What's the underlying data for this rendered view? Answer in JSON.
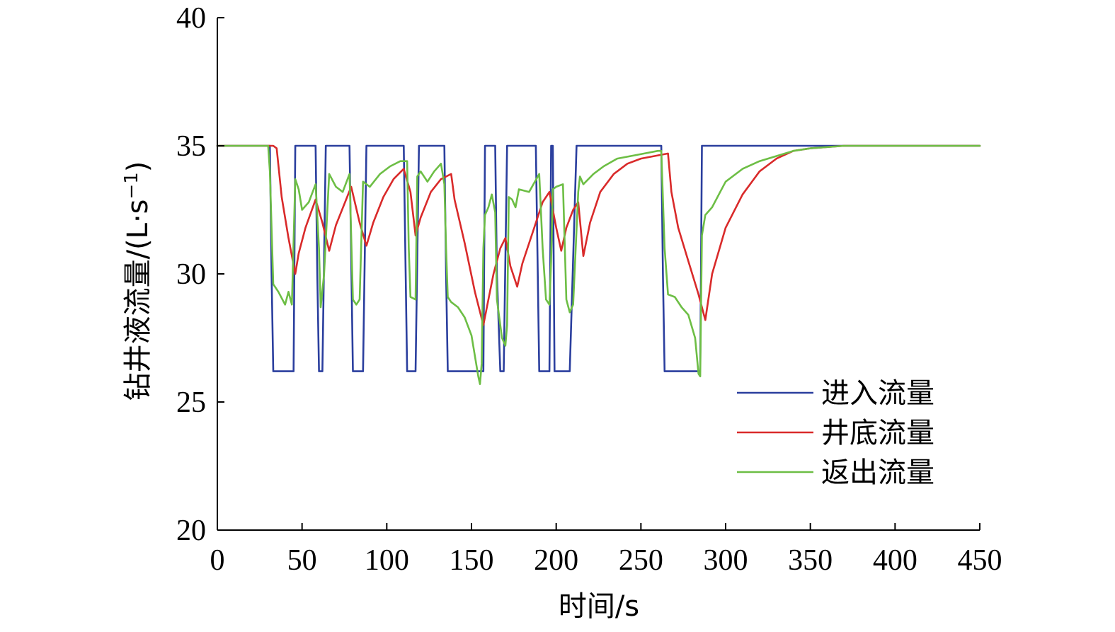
{
  "chart_data": {
    "type": "line",
    "title": "",
    "xlabel": "时间/s",
    "ylabel": "钻井液流量/(L·s",
    "ylabel_sup": "−1",
    "ylabel_end": ")",
    "xlim": [
      0,
      450
    ],
    "ylim": [
      20,
      40
    ],
    "xticks": [
      0,
      50,
      100,
      150,
      200,
      250,
      300,
      350,
      400,
      450
    ],
    "yticks": [
      20,
      25,
      30,
      35,
      40
    ],
    "grid": false,
    "legend_position": "bottom-right",
    "series": [
      {
        "name": "进入流量",
        "color": "#2B3F9E",
        "x": [
          0,
          31,
          32,
          33,
          45,
          46,
          58,
          59,
          60,
          62,
          64,
          78,
          80,
          82,
          86,
          88,
          110,
          112,
          114,
          117,
          119,
          134,
          135,
          136,
          155,
          157,
          158,
          164,
          165,
          167,
          169,
          171,
          173,
          175,
          188,
          190,
          192,
          196,
          197,
          198,
          199,
          204,
          206,
          208,
          212,
          214,
          262,
          263,
          264,
          284,
          285,
          286,
          450
        ],
        "y": [
          35,
          35,
          30,
          26.2,
          26.2,
          35,
          35,
          30,
          26.2,
          26.2,
          35,
          35,
          26.2,
          26.2,
          26.2,
          35,
          35,
          26.2,
          26.2,
          26.2,
          35,
          35,
          30,
          26.2,
          26.2,
          26.2,
          35,
          35,
          30,
          26.2,
          26.2,
          35,
          35,
          35,
          35,
          26.2,
          26.2,
          26.2,
          35,
          35,
          26.2,
          26.2,
          26.2,
          26.2,
          35,
          35,
          35,
          30,
          26.2,
          26.2,
          26.2,
          35,
          35
        ]
      },
      {
        "name": "井底流量",
        "color": "#D92A2A",
        "x": [
          0,
          33,
          35,
          38,
          42,
          46,
          48,
          52,
          58,
          62,
          66,
          70,
          76,
          79,
          84,
          88,
          92,
          98,
          104,
          110,
          114,
          117,
          120,
          126,
          132,
          138,
          140,
          146,
          152,
          157,
          160,
          163,
          167,
          170,
          173,
          177,
          180,
          186,
          192,
          196,
          200,
          203,
          206,
          210,
          213,
          216,
          220,
          226,
          234,
          242,
          250,
          258,
          266,
          268,
          272,
          278,
          284,
          288,
          292,
          300,
          310,
          320,
          330,
          340,
          350,
          370,
          400,
          450
        ],
        "y": [
          35,
          35,
          34.9,
          33.0,
          31.4,
          30.0,
          30.8,
          31.8,
          32.9,
          32.0,
          30.9,
          31.9,
          32.9,
          33.4,
          32.0,
          31.1,
          32.0,
          33.0,
          33.7,
          34.1,
          33.2,
          31.5,
          32.2,
          33.2,
          33.7,
          33.9,
          32.9,
          31.2,
          29.3,
          28.0,
          29.0,
          30.0,
          31.0,
          31.4,
          30.3,
          29.5,
          30.4,
          31.6,
          32.8,
          33.2,
          31.8,
          30.9,
          31.8,
          32.5,
          32.8,
          30.7,
          32.0,
          33.2,
          33.9,
          34.3,
          34.5,
          34.6,
          34.7,
          33.2,
          31.8,
          30.5,
          29.2,
          28.2,
          30.0,
          31.8,
          33.1,
          34.0,
          34.5,
          34.8,
          34.9,
          35.0,
          35.0,
          35.0
        ]
      },
      {
        "name": "返出流量",
        "color": "#6DBE45",
        "x": [
          0,
          30,
          31,
          33,
          36,
          40,
          42,
          44,
          46,
          48,
          50,
          54,
          58,
          60,
          61,
          63,
          66,
          70,
          74,
          78,
          80,
          82,
          84,
          86,
          90,
          96,
          102,
          108,
          112,
          113,
          114,
          117,
          118,
          120,
          124,
          128,
          132,
          134,
          135,
          136,
          138,
          142,
          146,
          150,
          154,
          155,
          156,
          157,
          158,
          160,
          162,
          164,
          165,
          168,
          170,
          171,
          172,
          174,
          176,
          178,
          184,
          190,
          192,
          194,
          196,
          197,
          198,
          200,
          204,
          206,
          208,
          210,
          213,
          214,
          216,
          222,
          228,
          236,
          244,
          252,
          260,
          262,
          264,
          266,
          270,
          274,
          278,
          282,
          284,
          285,
          286,
          288,
          292,
          296,
          300,
          310,
          320,
          330,
          340,
          350,
          370,
          400,
          450
        ],
        "y": [
          35,
          35,
          34,
          29.6,
          29.3,
          28.8,
          29.3,
          28.8,
          33.7,
          33.3,
          32.5,
          32.8,
          33.5,
          31.0,
          28.7,
          30.0,
          33.9,
          33.4,
          33.2,
          33.9,
          29.0,
          28.8,
          29.0,
          33.6,
          33.4,
          33.9,
          34.2,
          34.4,
          34.4,
          31.0,
          29.1,
          29.0,
          33.8,
          34.0,
          33.6,
          34.0,
          34.3,
          33.5,
          31.0,
          29.1,
          28.9,
          28.7,
          28.3,
          27.6,
          26.0,
          25.7,
          26.5,
          31.0,
          32.3,
          32.6,
          33.1,
          32.4,
          29.0,
          27.5,
          27.2,
          28.0,
          33.0,
          32.9,
          32.6,
          33.3,
          33.2,
          33.9,
          31.0,
          29.0,
          28.8,
          30.5,
          33.3,
          33.4,
          33.5,
          29.0,
          28.5,
          28.8,
          33.2,
          33.8,
          33.5,
          33.9,
          34.2,
          34.5,
          34.6,
          34.7,
          34.8,
          34.8,
          31.0,
          29.2,
          29.1,
          28.7,
          28.4,
          27.5,
          26.1,
          26.0,
          31.5,
          32.3,
          32.6,
          33.1,
          33.6,
          34.1,
          34.4,
          34.6,
          34.8,
          34.9,
          35.0,
          35.0,
          35.0
        ]
      }
    ]
  }
}
